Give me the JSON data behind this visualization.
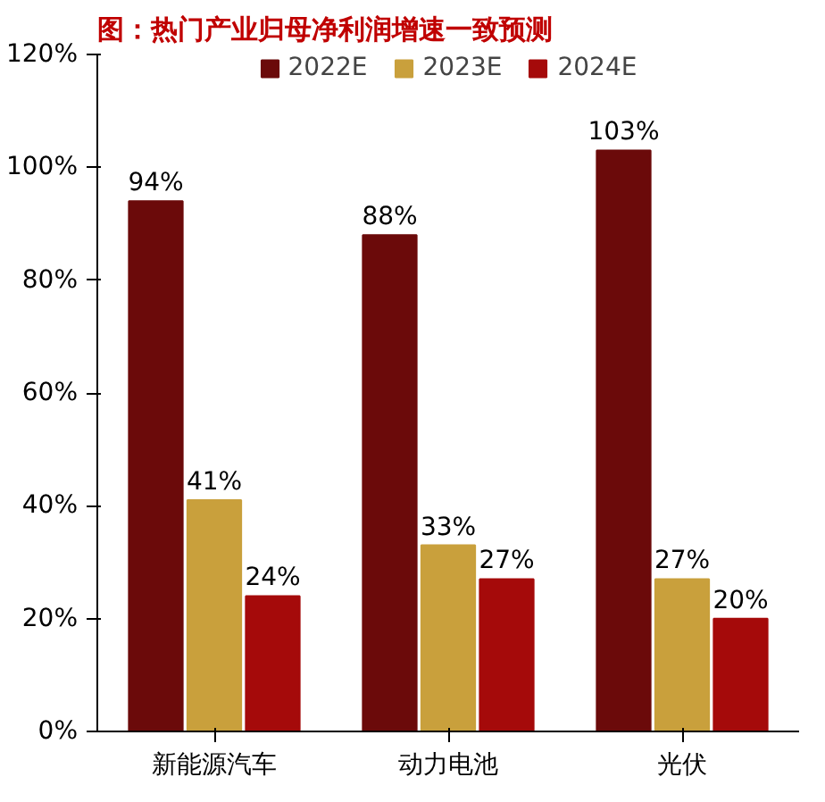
{
  "chart_data": {
    "type": "bar",
    "title": "图：热门产业归母净利润增速一致预测",
    "categories": [
      "新能源汽车",
      "动力电池",
      "光伏"
    ],
    "series": [
      {
        "name": "2022E",
        "color": "#6b0a0a",
        "values": [
          94,
          88,
          103
        ],
        "value_labels": [
          "94%",
          "88%",
          "103%"
        ]
      },
      {
        "name": "2023E",
        "color": "#c9a03c",
        "values": [
          41,
          33,
          27
        ],
        "value_labels": [
          "41%",
          "33%",
          "27%"
        ]
      },
      {
        "name": "2024E",
        "color": "#a50a0a",
        "values": [
          24,
          27,
          20
        ],
        "value_labels": [
          "24%",
          "27%",
          "20%"
        ]
      }
    ],
    "ylim": [
      0,
      120
    ],
    "yticks": [
      {
        "value": 0,
        "label": "0%"
      },
      {
        "value": 20,
        "label": "20%"
      },
      {
        "value": 40,
        "label": "40%"
      },
      {
        "value": 60,
        "label": "60%"
      },
      {
        "value": 80,
        "label": "80%"
      },
      {
        "value": 100,
        "label": "100%"
      },
      {
        "value": 120,
        "label": "120%"
      }
    ],
    "grid": false,
    "legend": "top"
  }
}
